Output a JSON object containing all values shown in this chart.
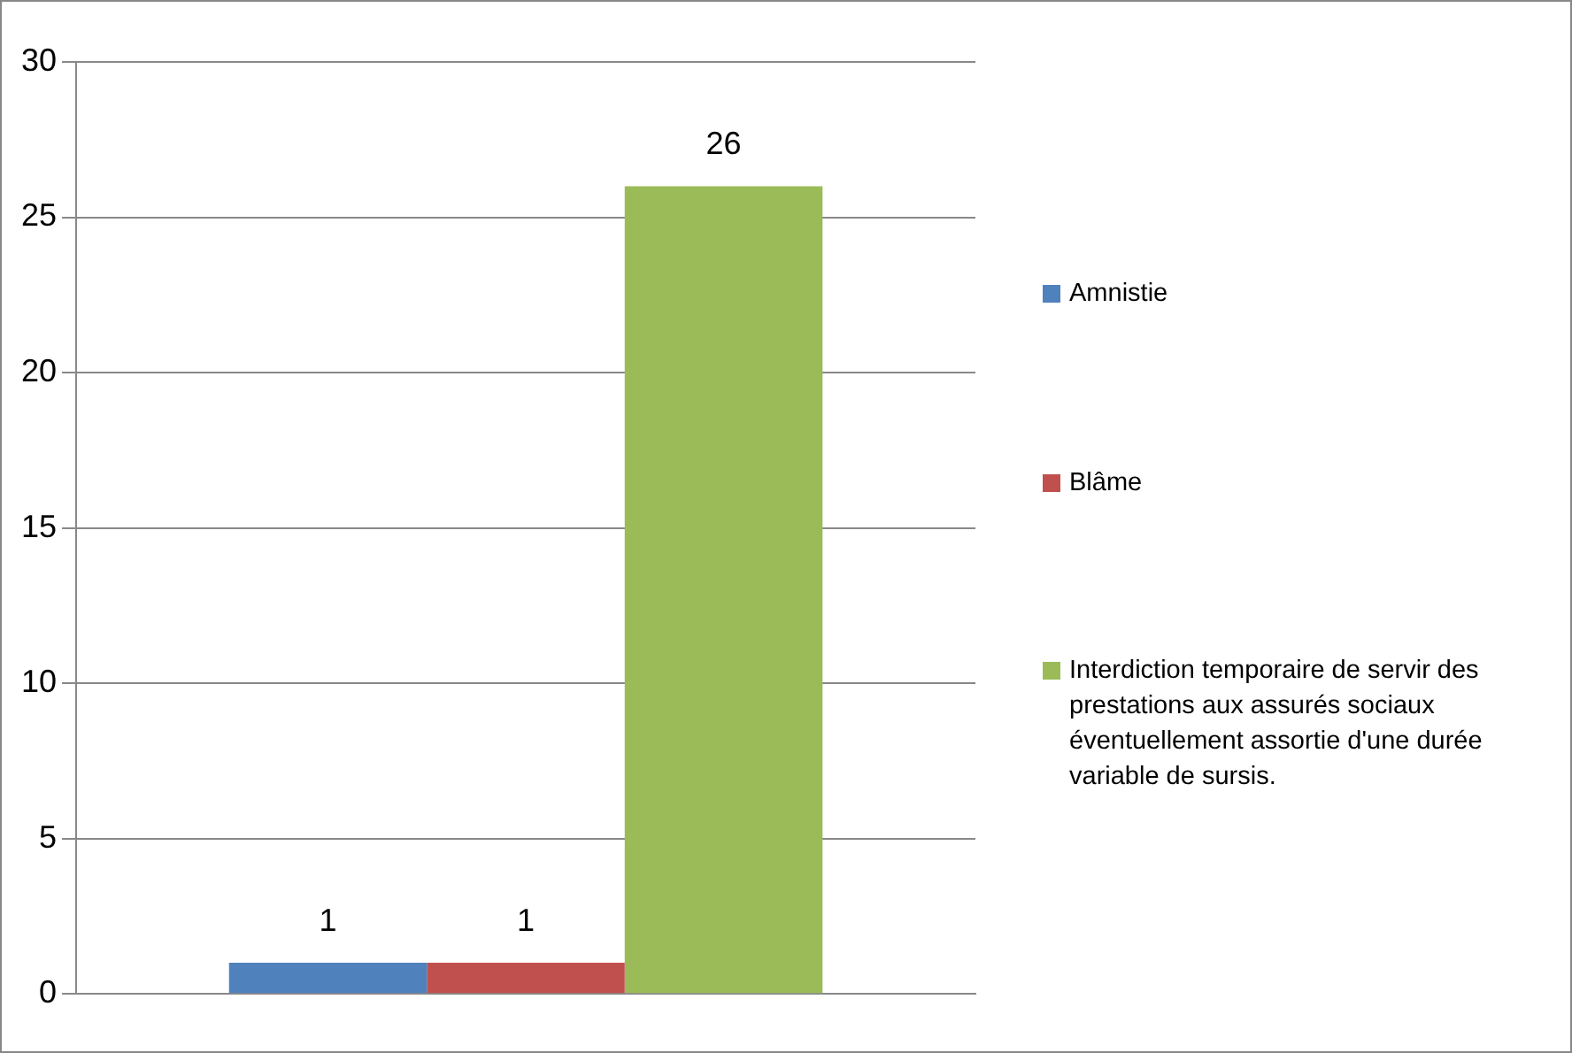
{
  "chart_data": {
    "type": "bar",
    "categories": [
      null
    ],
    "series": [
      {
        "name": "Amnistie",
        "color": "#4f81bd",
        "values": [
          1
        ]
      },
      {
        "name": "Blâme",
        "color": "#c0504d",
        "values": [
          1
        ]
      },
      {
        "name": "Interdiction temporaire de servir des prestations aux assurés sociaux éventuellement assortie d'une durée variable de sursis.",
        "color": "#9bbb59",
        "values": [
          26
        ]
      }
    ],
    "ylim": [
      0,
      30
    ],
    "yticks": [
      0,
      5,
      10,
      15,
      20,
      25,
      30
    ],
    "grid": "y",
    "legend": "right",
    "data_labels": true
  }
}
